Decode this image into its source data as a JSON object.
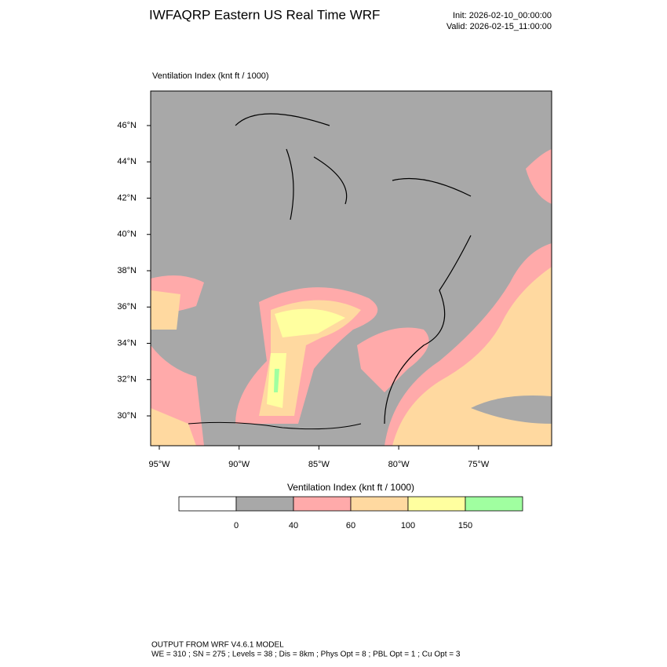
{
  "header": {
    "title": "IWFAQRP Eastern US Real Time WRF",
    "init": "Init: 2026-02-10_00:00:00",
    "valid": "Valid: 2026-02-15_11:00:00"
  },
  "map": {
    "label": "Ventilation Index   (knt ft / 1000)",
    "lat_labels": [
      "46°N",
      "44°N",
      "42°N",
      "40°N",
      "38°N",
      "36°N",
      "34°N",
      "32°N",
      "30°N"
    ],
    "lon_labels": [
      "95°W",
      "90°W",
      "85°W",
      "80°W",
      "75°W"
    ]
  },
  "legend": {
    "title": "Ventilation Index  (knt ft / 1000)",
    "colors": [
      "#ffffff",
      "#a8a8a8",
      "#ffaaaa",
      "#ffd9a0",
      "#ffff9f",
      "#a0ffa0"
    ],
    "ticks": [
      0,
      40,
      60,
      100,
      150
    ]
  },
  "footer": {
    "lines": [
      "OUTPUT FROM WRF V4.6.1 MODEL",
      "WE = 310 ; SN = 275 ; Levels = 38 ; Dis = 8km ; Phys Opt = 8 ; PBL Opt = 1 ; Cu Opt = 3"
    ]
  }
}
